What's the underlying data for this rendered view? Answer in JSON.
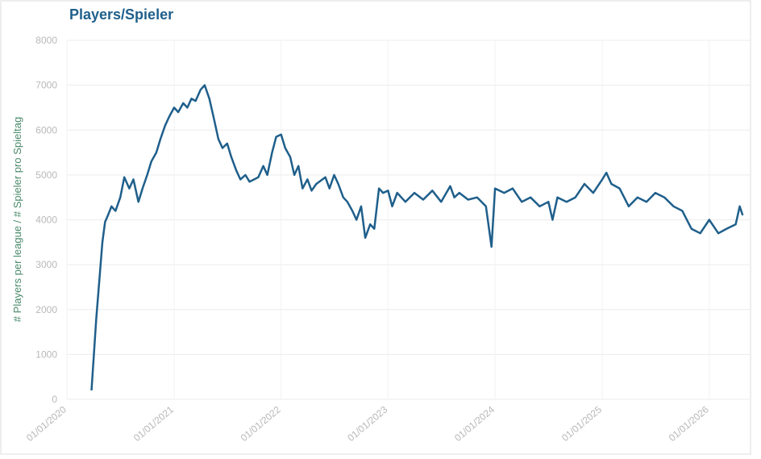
{
  "chart_data": {
    "type": "line",
    "title": "Players/Spieler",
    "y_label": "# Players per league / # Spieler pro Spieltag",
    "x": [
      "2020-03-25",
      "2020-04-01",
      "2020-04-10",
      "2020-04-20",
      "2020-05-01",
      "2020-05-10",
      "2020-05-20",
      "2020-06-01",
      "2020-06-15",
      "2020-07-01",
      "2020-07-15",
      "2020-08-01",
      "2020-08-15",
      "2020-09-01",
      "2020-09-15",
      "2020-10-01",
      "2020-10-15",
      "2020-11-01",
      "2020-11-15",
      "2020-12-01",
      "2020-12-15",
      "2021-01-01",
      "2021-01-15",
      "2021-02-01",
      "2021-02-15",
      "2021-03-01",
      "2021-03-15",
      "2021-04-01",
      "2021-04-15",
      "2021-05-01",
      "2021-05-15",
      "2021-06-01",
      "2021-06-15",
      "2021-07-01",
      "2021-07-15",
      "2021-08-01",
      "2021-08-15",
      "2021-09-01",
      "2021-09-15",
      "2021-10-01",
      "2021-10-15",
      "2021-11-01",
      "2021-11-15",
      "2021-12-01",
      "2021-12-15",
      "2022-01-01",
      "2022-01-15",
      "2022-02-01",
      "2022-02-15",
      "2022-03-01",
      "2022-03-15",
      "2022-04-01",
      "2022-04-15",
      "2022-05-01",
      "2022-06-01",
      "2022-06-15",
      "2022-07-01",
      "2022-07-15",
      "2022-08-01",
      "2022-08-15",
      "2022-09-01",
      "2022-09-15",
      "2022-10-01",
      "2022-10-15",
      "2022-11-01",
      "2022-11-15",
      "2022-12-01",
      "2022-12-15",
      "2023-01-01",
      "2023-01-15",
      "2023-02-01",
      "2023-03-01",
      "2023-04-01",
      "2023-05-01",
      "2023-06-01",
      "2023-07-01",
      "2023-08-01",
      "2023-08-15",
      "2023-09-01",
      "2023-10-01",
      "2023-11-01",
      "2023-12-01",
      "2023-12-20",
      "2024-01-01",
      "2024-02-01",
      "2024-03-01",
      "2024-04-01",
      "2024-05-01",
      "2024-06-01",
      "2024-07-01",
      "2024-07-15",
      "2024-08-01",
      "2024-09-01",
      "2024-10-01",
      "2024-11-01",
      "2024-12-01",
      "2025-01-01",
      "2025-01-15",
      "2025-02-01",
      "2025-03-01",
      "2025-04-01",
      "2025-05-01",
      "2025-06-01",
      "2025-07-01",
      "2025-08-01",
      "2025-09-01",
      "2025-10-01",
      "2025-11-01",
      "2025-12-01",
      "2026-01-01",
      "2026-02-01",
      "2026-03-01",
      "2026-04-01",
      "2026-04-15",
      "2026-04-25"
    ],
    "series": [
      {
        "name": "Players",
        "color": "#1f5f8b",
        "values": [
          200,
          900,
          1800,
          2600,
          3500,
          3950,
          4100,
          4300,
          4200,
          4500,
          4950,
          4700,
          4900,
          4400,
          4700,
          5000,
          5300,
          5500,
          5800,
          6100,
          6300,
          6500,
          6400,
          6600,
          6500,
          6700,
          6650,
          6900,
          7000,
          6700,
          6300,
          5800,
          5600,
          5700,
          5400,
          5100,
          4900,
          5000,
          4850,
          4900,
          4950,
          5200,
          5000,
          5500,
          5850,
          5900,
          5600,
          5400,
          5000,
          5200,
          4700,
          4900,
          4650,
          4800,
          4950,
          4700,
          5000,
          4800,
          4500,
          4400,
          4200,
          4000,
          4300,
          3600,
          3900,
          3800,
          4700,
          4600,
          4650,
          4300,
          4600,
          4400,
          4600,
          4450,
          4650,
          4400,
          4750,
          4500,
          4600,
          4450,
          4500,
          4300,
          3400,
          4700,
          4600,
          4700,
          4400,
          4500,
          4300,
          4400,
          4000,
          4500,
          4400,
          4500,
          4800,
          4600,
          4900,
          5050,
          4800,
          4700,
          4300,
          4500,
          4400,
          4600,
          4500,
          4300,
          4200,
          3800,
          3700,
          4000,
          3700,
          3800,
          3900,
          4300,
          4100
        ]
      }
    ],
    "xlim": [
      "2020-01-01",
      "2026-05-19"
    ],
    "xticks": [
      {
        "value": "2020-01-01",
        "label": "01/01/2020"
      },
      {
        "value": "2021-01-01",
        "label": "01/01/2021"
      },
      {
        "value": "2022-01-01",
        "label": "01/01/2022"
      },
      {
        "value": "2023-01-01",
        "label": "01/01/2023"
      },
      {
        "value": "2024-01-01",
        "label": "01/01/2024"
      },
      {
        "value": "2025-01-01",
        "label": "01/01/2025"
      },
      {
        "value": "2026-01-01",
        "label": "01/01/2026"
      }
    ],
    "ylim": [
      0,
      8000
    ],
    "yticks": [
      0,
      1000,
      2000,
      3000,
      4000,
      5000,
      6000,
      7000,
      8000
    ],
    "grid": true
  }
}
